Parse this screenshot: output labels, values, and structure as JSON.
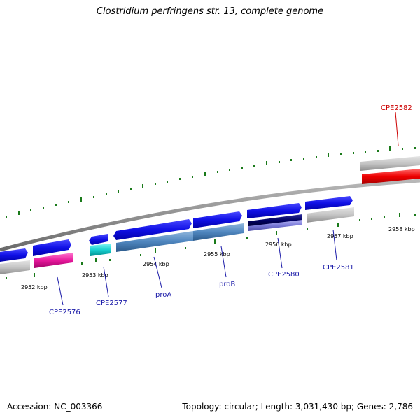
{
  "title": "Clostridium perfringens str. 13, complete genome",
  "footer": {
    "accession": "Accession: NC_003366",
    "summary": "Topology: circular; Length: 3,031,430 bp; Genes: 2,786"
  },
  "colors": {
    "cds_forward": "#1010e6",
    "backbone": "#888888",
    "tick": "#1a7a1a",
    "gene_label": "#1a1aa8",
    "highlight_label": "#cc0000"
  },
  "scale_labels": [
    "2952 kbp",
    "2953 kbp",
    "2954 kbp",
    "2955 kbp",
    "2956 kbp",
    "2957 kbp",
    "2958 kbp"
  ],
  "genes": [
    {
      "name": "CPE2576",
      "highlight": false
    },
    {
      "name": "CPE2577",
      "highlight": false
    },
    {
      "name": "proA",
      "highlight": false
    },
    {
      "name": "proB",
      "highlight": false
    },
    {
      "name": "CPE2580",
      "highlight": false
    },
    {
      "name": "CPE2581",
      "highlight": false
    },
    {
      "name": "CPE2582",
      "highlight": true
    }
  ]
}
